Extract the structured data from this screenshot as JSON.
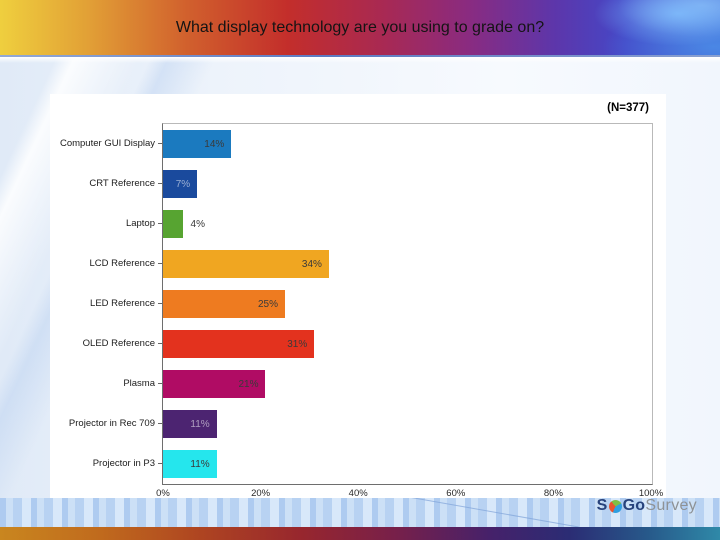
{
  "slide": {
    "title": "What display technology are you using to grade on?",
    "footer_logo": {
      "s": "S",
      "go": "Go",
      "survey": "Survey"
    }
  },
  "chart_data": {
    "type": "bar",
    "orientation": "horizontal",
    "annotation": "(N=377)",
    "categories": [
      "Computer GUI Display",
      "CRT Reference",
      "Laptop",
      "LCD Reference",
      "LED Reference",
      "OLED Reference",
      "Plasma",
      "Projector in Rec 709",
      "Projector in P3"
    ],
    "values": [
      14,
      7,
      4,
      34,
      25,
      31,
      21,
      11,
      11
    ],
    "value_labels": [
      "14%",
      "7%",
      "4%",
      "34%",
      "25%",
      "31%",
      "21%",
      "11%",
      "11%"
    ],
    "bar_colors": [
      "#1B7ABF",
      "#1A4A9D",
      "#57A431",
      "#F0A621",
      "#EE7B20",
      "#E3321E",
      "#B00C64",
      "#4C2471",
      "#25E6ED"
    ],
    "value_label_styles": [
      "dark",
      "light",
      "dark",
      "dark",
      "dark",
      "dark",
      "dark",
      "light",
      "dark"
    ],
    "x_ticks": [
      "0%",
      "20%",
      "40%",
      "60%",
      "80%",
      "100%"
    ],
    "xlim": [
      0,
      100
    ],
    "grid": false,
    "legend": false
  }
}
